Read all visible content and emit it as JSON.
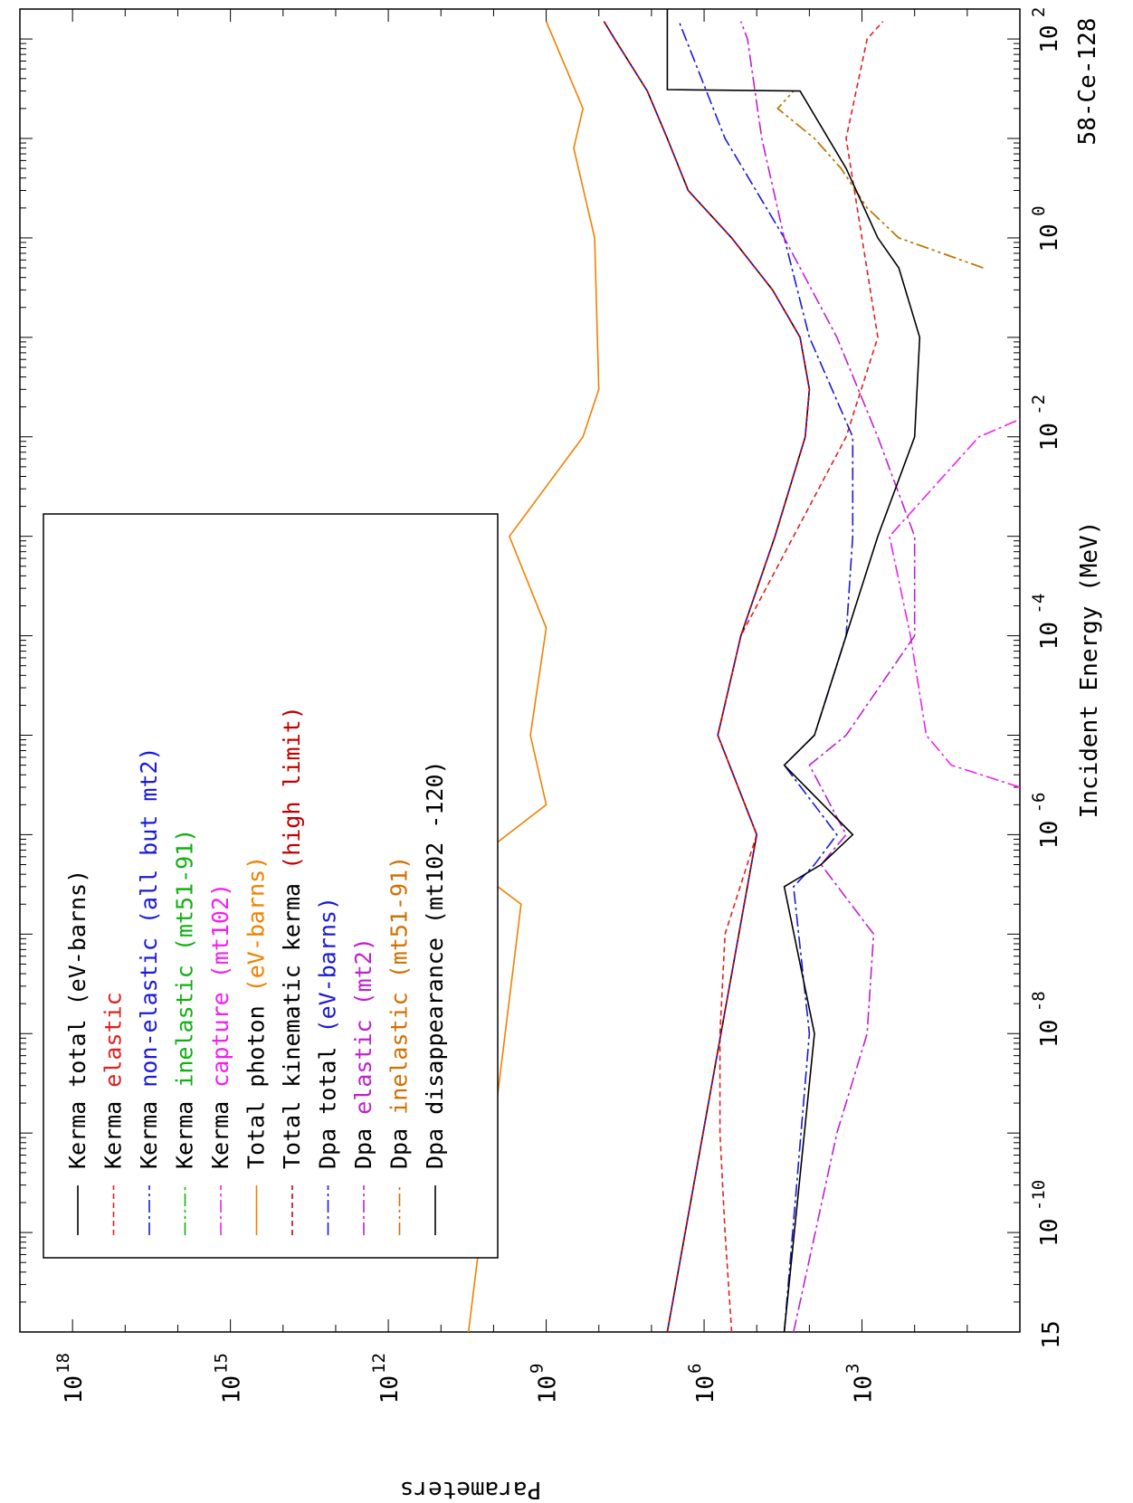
{
  "chart_data": {
    "type": "line",
    "orientation": "rotated-90-clockwise",
    "title": "58-Ce-128",
    "xlabel": "Incident Energy (MeV)",
    "ylabel": "Parameters",
    "x_scale": "log",
    "y_scale": "log",
    "xlim": [
      1e-11,
      200
    ],
    "ylim": [
      1,
      1e+19
    ],
    "x_ticks": [
      {
        "value": 1e-10,
        "base": "10",
        "exp": "-10"
      },
      {
        "value": 1e-08,
        "base": "10",
        "exp": "-8"
      },
      {
        "value": 1e-06,
        "base": "10",
        "exp": "-6"
      },
      {
        "value": 0.0001,
        "base": "10",
        "exp": "-4"
      },
      {
        "value": 0.01,
        "base": "10",
        "exp": "-2"
      },
      {
        "value": 1,
        "base": "10",
        "exp": "0"
      },
      {
        "value": 100,
        "base": "10",
        "exp": "2"
      }
    ],
    "y_ticks": [
      {
        "value": 1000.0,
        "base": "10",
        "exp": "3"
      },
      {
        "value": 1000000.0,
        "base": "10",
        "exp": "6"
      },
      {
        "value": 1000000000.0,
        "base": "10",
        "exp": "9"
      },
      {
        "value": 1000000000000.0,
        "base": "10",
        "exp": "12"
      },
      {
        "value": 1000000000000000.0,
        "base": "10",
        "exp": "15"
      },
      {
        "value": 1e+18,
        "base": "10",
        "exp": "18"
      }
    ],
    "corner_label": "15",
    "legend_position": "top-left",
    "series": [
      {
        "name": "Kerma total  (eV-barns)",
        "legend_text": "Kerma total  (eV-barns)",
        "label_prefix": "Kerma total  ",
        "color": "#000000",
        "dash": "",
        "x": [
          1e-11,
          1e-06,
          1e-05,
          0.0001,
          0.001,
          0.01,
          0.03,
          0.1,
          0.3,
          1,
          3,
          10,
          30,
          100,
          150
        ],
        "y": [
          5000000.0,
          100000.0,
          550000.0,
          200000.0,
          45000.0,
          12000.0,
          10000.0,
          15000.0,
          50000.0,
          300000.0,
          2000000.0,
          5000000.0,
          12000000.0,
          50000000.0,
          80000000.0
        ]
      },
      {
        "name": "Kerma elastic",
        "legend_text": "Kerma elastic",
        "label_prefix": "Kerma ",
        "color": "#e02020",
        "dash": "6,4",
        "x": [
          1e-11,
          1e-10,
          1e-09,
          1e-08,
          1e-07,
          1e-06,
          1e-05,
          0.0001,
          0.001,
          0.01,
          0.1,
          1,
          10,
          100,
          150
        ],
        "y": [
          300000.0,
          400000.0,
          500000.0,
          500000.0,
          400000.0,
          100000.0,
          550000.0,
          200000.0,
          20000.0,
          2000.0,
          500,
          1000,
          2000,
          800,
          400
        ]
      },
      {
        "name": "Kerma non-elastic (all but mt2)",
        "legend_text": "Kerma non-elastic (all but mt2)",
        "label_prefix": "Kerma ",
        "color": "#1a1ad8",
        "dash": "14,4,3,4",
        "x": [
          1e-11,
          1e-06,
          1e-05,
          0.0001,
          0.001,
          0.01,
          0.03,
          0.1,
          0.3,
          1,
          3,
          10,
          30,
          100,
          150
        ],
        "y": [
          5000000.0,
          100000.0,
          550000.0,
          200000.0,
          45000.0,
          12000.0,
          10000.0,
          15000.0,
          50000.0,
          300000.0,
          2000000.0,
          5000000.0,
          12000000.0,
          50000000.0,
          80000000.0
        ]
      },
      {
        "name": "Kerma inelastic (mt51-91)",
        "legend_text": "Kerma inelastic (mt51-91)",
        "label_prefix": "Kerma ",
        "color": "#10b010",
        "dash": "14,4,3,4,3,4",
        "x": [
          0.5,
          0.7,
          1,
          2,
          5,
          10,
          20,
          30
        ],
        "y": [
          5,
          30,
          200,
          800,
          2500,
          8000,
          40000.0,
          20000.0
        ]
      },
      {
        "name": "Kerma capture (mt102)",
        "legend_text": "Kerma capture (mt102)",
        "label_prefix": "Kerma ",
        "color": "#f020f0",
        "dash": "14,4,3,4",
        "x": [
          3e-06,
          5e-06,
          1e-05,
          0.0001,
          0.001,
          0.01,
          0.015
        ],
        "y": [
          1,
          20,
          60,
          120,
          300,
          6,
          1
        ]
      },
      {
        "name": "Total photon (eV-barns)",
        "legend_text": "Total photon (eV-barns)",
        "label_prefix": "Total photon ",
        "color": "#f08000",
        "dash": "",
        "x": [
          1e-11,
          2e-07,
          5e-07,
          2e-06,
          1e-05,
          0.00012,
          0.001,
          0.01,
          0.03,
          1,
          8,
          20,
          150
        ],
        "y": [
          30000000000.0,
          3000000000.0,
          30000000000.0,
          1000000000.0,
          2000000000.0,
          1000000000.0,
          5000000000.0,
          200000000.0,
          100000000.0,
          120000000.0,
          300000000.0,
          200000000.0,
          1000000000.0
        ]
      },
      {
        "name": "Total kinematic kerma (high limit)",
        "legend_text": "Total kinematic kerma (high limit)",
        "label_prefix": "Total kinematic kerma ",
        "color": "#c00000",
        "dash": "6,4",
        "x": [
          1e-11,
          1e-06,
          1e-05,
          0.0001,
          0.001,
          0.01,
          0.03,
          0.1,
          0.3,
          1,
          3,
          10,
          30,
          100,
          150
        ],
        "y": [
          5000000.0,
          100000.0,
          550000.0,
          200000.0,
          45000.0,
          12000.0,
          10000.0,
          15000.0,
          50000.0,
          300000.0,
          2000000.0,
          5000000.0,
          12000000.0,
          50000000.0,
          80000000.0
        ]
      },
      {
        "name": "Dpa total (eV-barns)",
        "legend_text": "Dpa total (eV-barns)",
        "label_prefix": "Dpa total ",
        "color": "#1a1ad8",
        "dash": "14,4,3,4",
        "x": [
          1e-11,
          1e-08,
          3e-07,
          5e-07,
          1e-06,
          5e-06,
          1e-05,
          0.0001,
          0.001,
          0.01,
          0.1,
          1,
          10,
          150
        ],
        "y": [
          30000.0,
          10000.0,
          20000.0,
          8000.0,
          3000.0,
          30000.0,
          8000.0,
          2000.0,
          1500.0,
          1500.0,
          10000.0,
          30000.0,
          400000.0,
          3000000.0
        ]
      },
      {
        "name": "Dpa elastic (mt2)",
        "legend_text": "Dpa elastic (mt2)",
        "label_prefix": "Dpa ",
        "color": "#c020d0",
        "dash": "14,4,3,4",
        "x": [
          1e-11,
          1e-09,
          1e-08,
          1e-07,
          5e-07,
          1e-06,
          5e-06,
          1e-05,
          0.0001,
          0.001,
          0.01,
          0.1,
          1,
          10,
          100,
          150
        ],
        "y": [
          20000.0,
          3000.0,
          800,
          600,
          6000.0,
          2000.0,
          10000.0,
          2000.0,
          100,
          100,
          500,
          3000.0,
          30000.0,
          80000.0,
          150000.0,
          200000.0
        ]
      },
      {
        "name": "Dpa inelastic (mt51-91)",
        "legend_text": "Dpa inelastic (mt51-91)",
        "label_prefix": "Dpa ",
        "color": "#d07000",
        "dash": "14,4,3,4,3,4",
        "x": [
          0.5,
          0.7,
          1,
          2,
          5,
          10,
          20,
          30
        ],
        "y": [
          5,
          30,
          200,
          800,
          2500,
          8000,
          40000.0,
          20000.0
        ]
      },
      {
        "name": "Dpa disappearance (mt102 -120)",
        "legend_text": "Dpa disappearance (mt102 -120)",
        "label_prefix": "Dpa disappearance ",
        "color": "#000000",
        "dash": "",
        "x": [
          1e-11,
          1e-08,
          3e-07,
          5e-07,
          1e-06,
          5e-06,
          1e-05,
          0.0001,
          0.001,
          0.01,
          0.1,
          0.5,
          1,
          5,
          30,
          31,
          200
        ],
        "y": [
          30000.0,
          8000.0,
          30000.0,
          6000.0,
          1500.0,
          30000.0,
          8000.0,
          2000.0,
          500,
          100,
          80,
          200,
          500,
          2000.0,
          15000.0,
          5000000.0,
          5000000.0
        ]
      }
    ]
  }
}
